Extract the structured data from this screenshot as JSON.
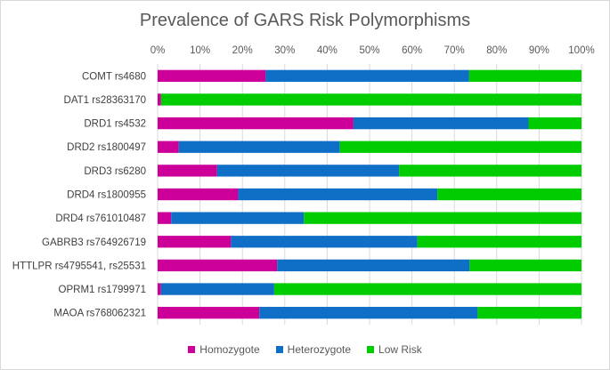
{
  "chart_data": {
    "type": "bar",
    "orientation": "horizontal",
    "stacked": "percent",
    "title": "Prevalence of GARS Risk Polymorphisms",
    "xlabel": "",
    "ylabel": "",
    "xlim": [
      0,
      100
    ],
    "x_ticks": [
      "0%",
      "10%",
      "20%",
      "30%",
      "40%",
      "50%",
      "60%",
      "70%",
      "80%",
      "90%",
      "100%"
    ],
    "grid": "vertical",
    "legend_position": "bottom",
    "categories": [
      "COMT rs4680",
      "DAT1 rs28363170",
      "DRD1 rs4532",
      "DRD2 rs1800497",
      "DRD3 rs6280",
      "DRD4 rs1800955",
      "DRD4 rs761010487",
      "GABRB3 rs764926719",
      "HTTLPR rs4795541, rs25531",
      "OPRM1 rs1799971",
      "MAOA rs768062321"
    ],
    "series": [
      {
        "name": "Homozygote",
        "color": "#cc0099",
        "values": [
          25.5,
          0.8,
          46.2,
          5.0,
          14.0,
          19.0,
          3.2,
          17.3,
          28.2,
          0.8,
          24.0
        ]
      },
      {
        "name": "Heterozygote",
        "color": "#0f6fc6",
        "values": [
          48.0,
          0.0,
          41.3,
          38.0,
          43.0,
          47.0,
          31.3,
          44.0,
          45.4,
          26.7,
          51.5
        ]
      },
      {
        "name": "Low Risk",
        "color": "#00cc00",
        "values": [
          26.5,
          99.2,
          12.5,
          57.0,
          43.0,
          34.0,
          65.5,
          38.7,
          26.4,
          72.5,
          24.5
        ]
      }
    ]
  }
}
